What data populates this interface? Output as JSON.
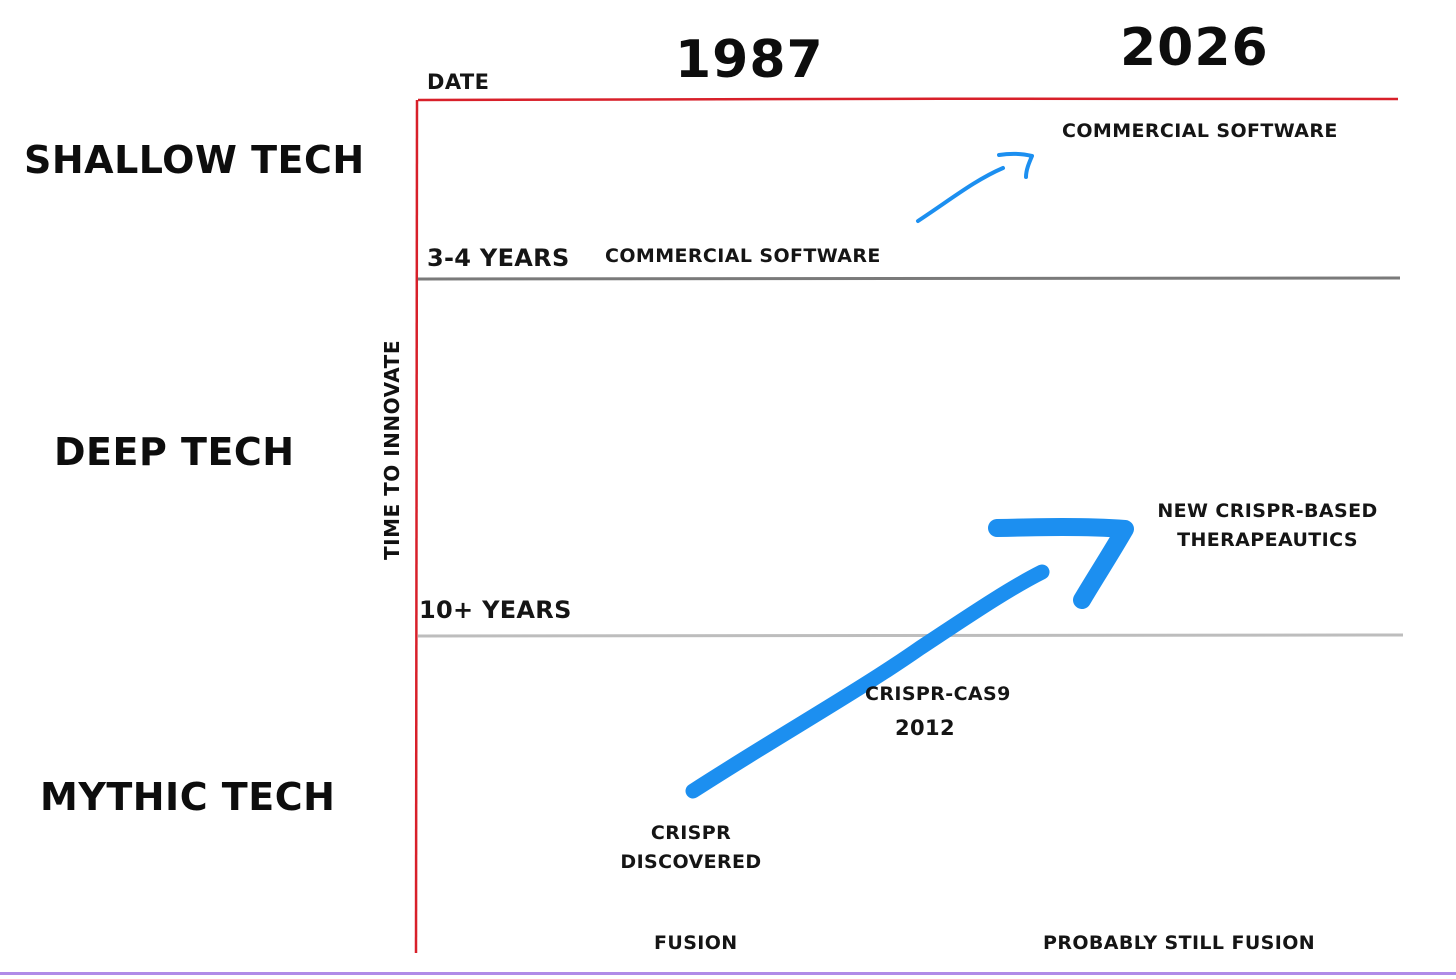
{
  "categories": {
    "shallow": "SHALLOW TECH",
    "deep": "DEEP TECH",
    "mythic": "MYTHIC TECH"
  },
  "axis": {
    "date_label": "DATE",
    "year_left": "1987",
    "year_right": "2026",
    "y_label": "TIME TO INNOVATE",
    "level_shallow": "3-4 YEARS",
    "level_deep": "10+ YEARS"
  },
  "labels": {
    "commercial_software_1987": "COMMERCIAL SOFTWARE",
    "commercial_software_2026": "COMMERCIAL SOFTWARE",
    "crispr_discovered_line1": "CRISPR",
    "crispr_discovered_line2": "DISCOVERED",
    "crispr_cas9": "CRISPR-CAS9",
    "crispr_cas9_year": "2012",
    "crispr_therapeutics_line1": "NEW CRISPR-BASED",
    "crispr_therapeutics_line2": "THERAPEAUTICS",
    "fusion_1987": "FUSION",
    "fusion_2026": "PROBABLY STILL FUSION"
  },
  "colors": {
    "axis_line": "#d8202a",
    "divider_shallow": "#7a7a7a",
    "divider_deep": "#bdbdbd",
    "arrow": "#1c8ff0",
    "bottom_bar": "#b08be8"
  }
}
